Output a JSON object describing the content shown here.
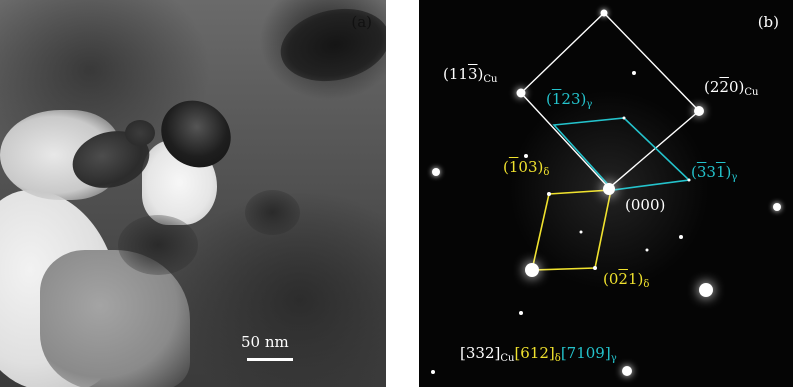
{
  "panel_a": {
    "tag": "(a)",
    "scale_bar_label": "50 nm"
  },
  "panel_b": {
    "tag": "(b)",
    "labels": {
      "cu_113": {
        "pre": "(11",
        "bar": "3",
        "post": ")",
        "sub": "Cu"
      },
      "cu_220": {
        "pre": "(2",
        "bar": "2",
        "post": "0)",
        "sub": "Cu"
      },
      "gamma_123": {
        "pre": "(",
        "bar": "1",
        "post": "23)",
        "sub": "γ"
      },
      "gamma_331": {
        "pre": "(",
        "bar": "3",
        "mid": "3",
        "bar2": "1",
        "post": ")",
        "sub": "γ"
      },
      "delta_103": {
        "pre": "(",
        "bar": "1",
        "post": "03)",
        "sub": "δ"
      },
      "delta_021": {
        "pre": "(0",
        "bar": "2",
        "post": "1)",
        "sub": "δ"
      },
      "origin": "(000)"
    },
    "zone_axis": {
      "cu": "[332]",
      "cu_sub": "Cu",
      "delta": "[612]",
      "delta_sub": "δ",
      "gamma": "[7109]",
      "gamma_sub": "γ"
    },
    "colors": {
      "cu": "#ffffff",
      "gamma": "#24c3cc",
      "delta": "#f0e22e"
    }
  }
}
